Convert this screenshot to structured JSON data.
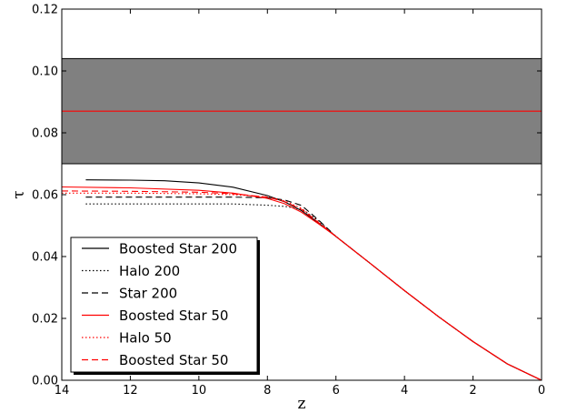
{
  "chart_data": {
    "type": "line",
    "title": "",
    "xlabel": "z",
    "ylabel": "τ",
    "xlim": [
      14,
      0
    ],
    "ylim": [
      0.0,
      0.12
    ],
    "x_inverted": true,
    "grid": false,
    "legend_placement": "lower-left",
    "x_ticks": [
      14,
      12,
      10,
      8,
      6,
      4,
      2,
      0
    ],
    "x_tick_labels": [
      "14",
      "12",
      "10",
      "8",
      "6",
      "4",
      "2",
      "0"
    ],
    "y_ticks": [
      0.0,
      0.02,
      0.04,
      0.06,
      0.08,
      0.1,
      0.12
    ],
    "y_tick_labels": [
      "0.00",
      "0.02",
      "0.04",
      "0.06",
      "0.08",
      "0.10",
      "0.12"
    ],
    "band": {
      "y_low": 0.07,
      "y_high": 0.104,
      "y_center": 0.087,
      "fill_color": "#808080",
      "center_color": "#ff0000"
    },
    "series": [
      {
        "name": "Boosted Star 200",
        "color": "#000000",
        "dash": "solid",
        "x": [
          13.3,
          12,
          11,
          10,
          9,
          8,
          7.5,
          7,
          6.5,
          6,
          5,
          4,
          3,
          2,
          1,
          0
        ],
        "y": [
          0.0648,
          0.0647,
          0.0645,
          0.0638,
          0.0624,
          0.0597,
          0.0577,
          0.0548,
          0.0508,
          0.0465,
          0.0378,
          0.029,
          0.0205,
          0.0125,
          0.0053,
          0.0
        ]
      },
      {
        "name": "Halo 200",
        "color": "#000000",
        "dash": "dotted",
        "x": [
          13.3,
          12,
          10,
          9,
          8,
          7.5,
          7,
          6.5,
          6,
          5,
          4,
          3,
          2,
          1,
          0
        ],
        "y": [
          0.057,
          0.057,
          0.057,
          0.057,
          0.0566,
          0.0562,
          0.0553,
          0.0515,
          0.0465,
          0.0378,
          0.029,
          0.0205,
          0.0125,
          0.0053,
          0.0
        ]
      },
      {
        "name": "Star 200",
        "color": "#000000",
        "dash": "dashed",
        "x": [
          13.3,
          12,
          10,
          9,
          8,
          7.5,
          7,
          6.5,
          6,
          5,
          4,
          3,
          2,
          1,
          0
        ],
        "y": [
          0.0592,
          0.0592,
          0.0592,
          0.0592,
          0.059,
          0.0583,
          0.0565,
          0.0517,
          0.0465,
          0.0378,
          0.029,
          0.0205,
          0.0125,
          0.0053,
          0.0
        ]
      },
      {
        "name": "Boosted Star 50",
        "color": "#ff0000",
        "dash": "solid",
        "x": [
          14,
          12,
          10,
          9,
          8,
          7.5,
          7,
          6.5,
          6,
          5,
          4,
          3,
          2,
          1,
          0
        ],
        "y": [
          0.0625,
          0.0622,
          0.0614,
          0.0605,
          0.0588,
          0.0571,
          0.0543,
          0.0505,
          0.0465,
          0.0378,
          0.029,
          0.0205,
          0.0125,
          0.0053,
          0.0
        ]
      },
      {
        "name": "Halo 50",
        "color": "#ff0000",
        "dash": "dotted",
        "x": [
          14,
          12,
          10,
          9,
          8,
          7.5,
          7,
          6.5,
          6,
          5,
          4,
          3,
          2,
          1,
          0
        ],
        "y": [
          0.0605,
          0.0605,
          0.0603,
          0.06,
          0.0593,
          0.058,
          0.0556,
          0.0511,
          0.0465,
          0.0378,
          0.029,
          0.0205,
          0.0125,
          0.0053,
          0.0
        ]
      },
      {
        "name": "Boosted Star 50",
        "color": "#ff0000",
        "dash": "dashed",
        "x": [
          14,
          12,
          10,
          9,
          8,
          7.5,
          7,
          6.5,
          6,
          5,
          4,
          3,
          2,
          1,
          0
        ],
        "y": [
          0.0612,
          0.0611,
          0.0608,
          0.0603,
          0.0592,
          0.0578,
          0.0552,
          0.0509,
          0.0465,
          0.0378,
          0.029,
          0.0205,
          0.0125,
          0.0053,
          0.0
        ]
      }
    ]
  }
}
